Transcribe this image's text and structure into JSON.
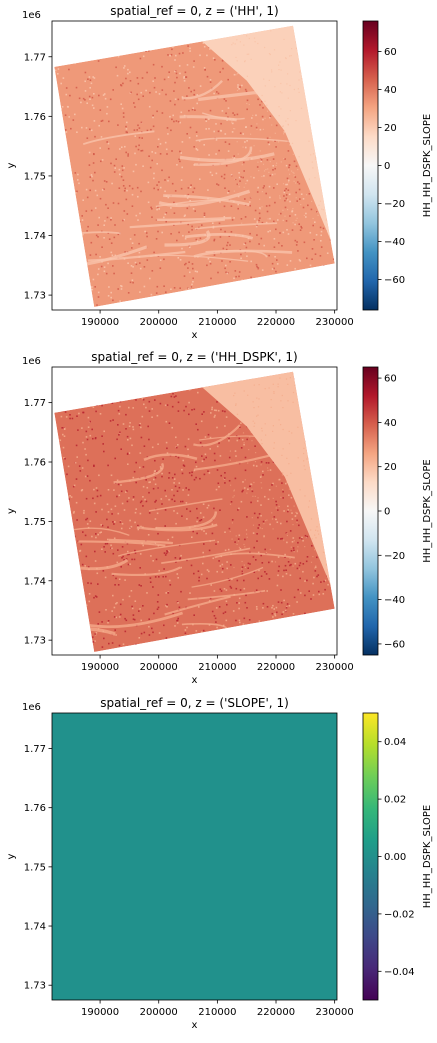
{
  "chart_data": [
    {
      "type": "heatmap",
      "title": "spatial_ref = 0, z = ('HH', 1)",
      "xlabel": "x",
      "ylabel": "y",
      "y_offset_label": "1e6",
      "xlim": [
        181800,
        230400
      ],
      "ylim": [
        1.7275,
        1.776
      ],
      "x_ticks": [
        190000,
        200000,
        210000,
        220000,
        230000
      ],
      "x_tick_labels": [
        "190000",
        "200000",
        "210000",
        "220000",
        "230000"
      ],
      "y_ticks": [
        1.73,
        1.74,
        1.75,
        1.76,
        1.77
      ],
      "y_tick_labels": [
        "1.73",
        "1.74",
        "1.75",
        "1.76",
        "1.77"
      ],
      "colorbar": {
        "label": "HH_HH_DSPK_SLOPE",
        "colormap": "RdBu_r",
        "range": [
          -76,
          76
        ],
        "ticks": [
          -60,
          -40,
          -20,
          0,
          20,
          40,
          60
        ],
        "tick_labels": [
          "−60",
          "−40",
          "−20",
          "0",
          "20",
          "40",
          "60"
        ]
      },
      "footprint": [
        [
          182200,
          1.7683
        ],
        [
          222900,
          1.7752
        ],
        [
          230000,
          1.7353
        ],
        [
          189000,
          1.728
        ]
      ],
      "typical_value": 33,
      "water_value": 18,
      "grid": false
    },
    {
      "type": "heatmap",
      "title": "spatial_ref = 0, z = ('HH_DSPK', 1)",
      "xlabel": "x",
      "ylabel": "y",
      "y_offset_label": "1e6",
      "xlim": [
        181800,
        230400
      ],
      "ylim": [
        1.7275,
        1.776
      ],
      "x_ticks": [
        190000,
        200000,
        210000,
        220000,
        230000
      ],
      "x_tick_labels": [
        "190000",
        "200000",
        "210000",
        "220000",
        "230000"
      ],
      "y_ticks": [
        1.73,
        1.74,
        1.75,
        1.76,
        1.77
      ],
      "y_tick_labels": [
        "1.73",
        "1.74",
        "1.75",
        "1.76",
        "1.77"
      ],
      "colorbar": {
        "label": "HH_HH_DSPK_SLOPE",
        "colormap": "RdBu_r",
        "range": [
          -65,
          65
        ],
        "ticks": [
          -60,
          -40,
          -20,
          0,
          20,
          40,
          60
        ],
        "tick_labels": [
          "−60",
          "−40",
          "−20",
          "0",
          "20",
          "40",
          "60"
        ]
      },
      "footprint": [
        [
          182200,
          1.7683
        ],
        [
          222900,
          1.7752
        ],
        [
          230000,
          1.7353
        ],
        [
          189000,
          1.728
        ]
      ],
      "typical_value": 36,
      "water_value": 20,
      "grid": false
    },
    {
      "type": "heatmap",
      "title": "spatial_ref = 0, z = ('SLOPE', 1)",
      "xlabel": "x",
      "ylabel": "y",
      "y_offset_label": "1e6",
      "xlim": [
        181800,
        230400
      ],
      "ylim": [
        1.7275,
        1.776
      ],
      "x_ticks": [
        190000,
        200000,
        210000,
        220000,
        230000
      ],
      "x_tick_labels": [
        "190000",
        "200000",
        "210000",
        "220000",
        "230000"
      ],
      "y_ticks": [
        1.73,
        1.74,
        1.75,
        1.76,
        1.77
      ],
      "y_tick_labels": [
        "1.73",
        "1.74",
        "1.75",
        "1.76",
        "1.77"
      ],
      "colorbar": {
        "label": "HH_HH_DSPK_SLOPE",
        "colormap": "viridis",
        "range": [
          -0.05,
          0.05
        ],
        "ticks": [
          -0.04,
          -0.02,
          0.0,
          0.02,
          0.04
        ],
        "tick_labels": [
          "−0.04",
          "−0.02",
          "0.00",
          "0.02",
          "0.04"
        ]
      },
      "constant_value": 0.0,
      "fill_color": "#21918c",
      "grid": false
    }
  ]
}
